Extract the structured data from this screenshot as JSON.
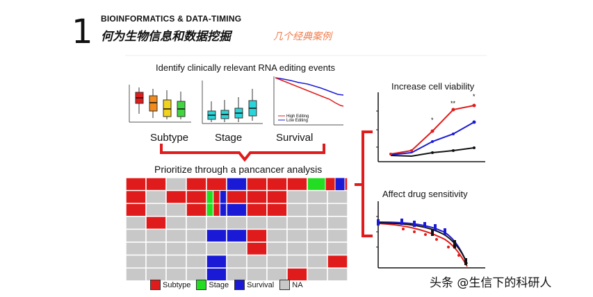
{
  "slide": {
    "number": "1",
    "header_en": "BIOINFORMATICS & DATA-TIMING",
    "header_cn": "何为生物信息和数据挖掘",
    "header_sub": "几个经典案例"
  },
  "figure": {
    "rna_title": "Identify clinically relevant RNA editing events",
    "panel_labels": [
      "Subtype",
      "Stage",
      "Survival"
    ],
    "survival_legend": [
      "High Editing",
      "Low Editing"
    ],
    "pancancer_title": "Prioritize through a pancancer analysis",
    "viability_title": "Increase cell viability",
    "drug_title": "Affect drug sensitivity",
    "significance_marks": [
      "*",
      "**",
      "*"
    ],
    "legend": [
      {
        "label": "Subtype",
        "color": "#e01b1b"
      },
      {
        "label": "Stage",
        "color": "#22dd22"
      },
      {
        "label": "Survival",
        "color": "#1a1ad6"
      },
      {
        "label": "NA",
        "color": "#c8c8c8"
      }
    ],
    "colors": {
      "bracket": "#e01b1b",
      "grid_border": "#ffffff"
    }
  },
  "watermark": "头条 @生信下的科研人"
}
